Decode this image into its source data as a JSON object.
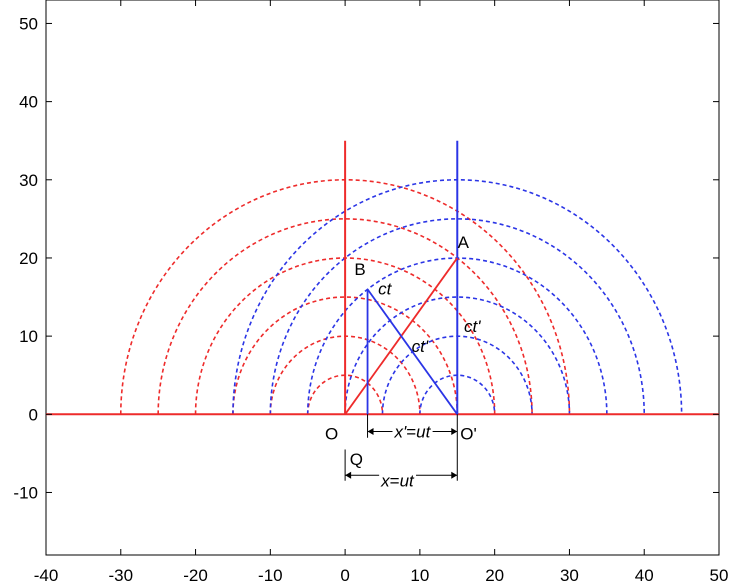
{
  "chart_data": {
    "type": "diagram",
    "xlim": [
      -40,
      50
    ],
    "ylim": [
      -18,
      53
    ],
    "x_ticks": [
      -40,
      -30,
      -20,
      -10,
      0,
      10,
      20,
      30,
      40,
      50
    ],
    "y_ticks": [
      -10,
      0,
      10,
      20,
      30,
      40,
      50
    ],
    "colors": {
      "red": "#ee2b2b",
      "blue": "#2b35e6",
      "axis": "#000000"
    },
    "red_frame": {
      "origin_x": 0,
      "arc_radii": [
        5,
        10,
        15,
        20,
        25,
        30
      ],
      "vertical_line": {
        "x": 0,
        "y_top": 35
      },
      "baseline": {
        "x_from": -40,
        "x_to": 50,
        "y": 0
      }
    },
    "blue_frame": {
      "origin_x": 15,
      "arc_radii": [
        5,
        10,
        15,
        20,
        25,
        30
      ],
      "vertical_line": {
        "x": 15,
        "y_top": 35
      }
    },
    "light_paths": [
      {
        "color": "red",
        "from": [
          0,
          0
        ],
        "to": [
          15,
          20
        ]
      },
      {
        "color": "blue",
        "from": [
          3,
          0
        ],
        "to": [
          3,
          16
        ]
      },
      {
        "color": "blue",
        "from": [
          3,
          16
        ],
        "to": [
          15,
          0
        ]
      }
    ],
    "point_labels": [
      {
        "text": "A",
        "x": 15.8,
        "y": 21.3
      },
      {
        "text": "B",
        "x": 2.0,
        "y": 17.8
      },
      {
        "text": "O",
        "x": -1.8,
        "y": -3.2
      },
      {
        "text": "O'",
        "x": 16.5,
        "y": -3.2
      },
      {
        "text": "Q",
        "x": 1.5,
        "y": -6.5
      }
    ],
    "segment_labels": [
      {
        "text": "ct",
        "x": 5.3,
        "y": 15.3
      },
      {
        "text": "ct'",
        "x": 17.0,
        "y": 10.5
      },
      {
        "text": "ct'",
        "x": 10.0,
        "y": 8.0
      }
    ],
    "measure_labels": [
      {
        "text": "x'=ut",
        "x": 9.0,
        "y": -2.2
      },
      {
        "text": "x=ut",
        "x": 7.0,
        "y": -8.5
      }
    ]
  }
}
